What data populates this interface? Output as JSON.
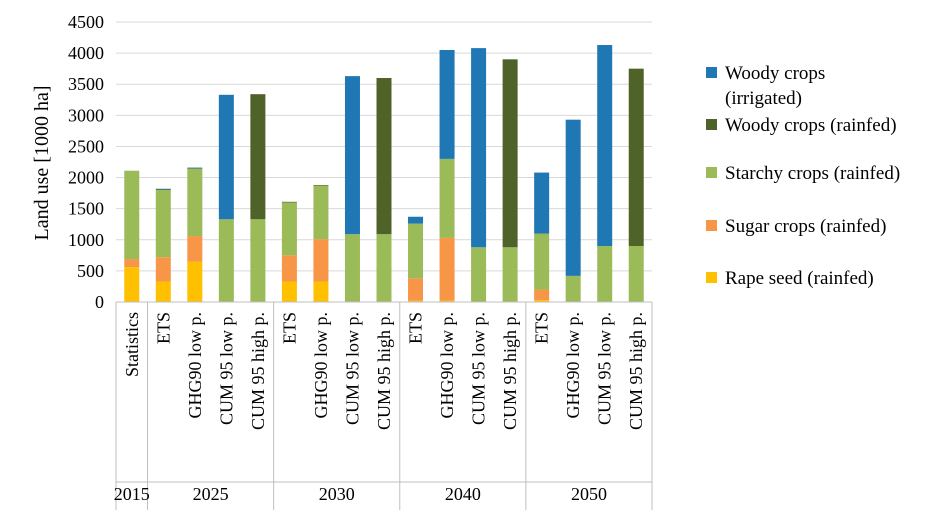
{
  "chart_data": {
    "type": "bar",
    "stacked": true,
    "ylabel": "Land use [1000 ha]",
    "ylim": [
      0,
      4500
    ],
    "yticks": [
      0,
      500,
      1000,
      1500,
      2000,
      2500,
      3000,
      3500,
      4000,
      4500
    ],
    "grid": true,
    "legend_position": "right",
    "groups": [
      {
        "year": "2015",
        "categories": [
          "Statistics"
        ]
      },
      {
        "year": "2025",
        "categories": [
          "ETS",
          "GHG90 low p.",
          "CUM 95 low p.",
          "CUM 95 high p."
        ]
      },
      {
        "year": "2030",
        "categories": [
          "ETS",
          "GHG90 low p.",
          "CUM 95 low p.",
          "CUM 95 high p."
        ]
      },
      {
        "year": "2040",
        "categories": [
          "ETS",
          "GHG90 low p.",
          "CUM 95 low p.",
          "CUM 95 high p."
        ]
      },
      {
        "year": "2050",
        "categories": [
          "ETS",
          "GHG90 low p.",
          "CUM 95 low p.",
          "CUM 95 high p."
        ]
      }
    ],
    "series": [
      {
        "name": "Rape seed (rainfed)",
        "color": "#FFC000",
        "values": [
          560,
          330,
          650,
          0,
          0,
          330,
          330,
          0,
          0,
          20,
          20,
          0,
          0,
          30,
          0,
          0,
          0
        ]
      },
      {
        "name": "Sugar crops (rainfed)",
        "color": "#F79646",
        "values": [
          130,
          390,
          410,
          0,
          0,
          420,
          680,
          0,
          0,
          360,
          1010,
          0,
          0,
          170,
          0,
          0,
          0
        ]
      },
      {
        "name": "Starchy crops (rainfed)",
        "color": "#9BBB59",
        "values": [
          1420,
          1080,
          1080,
          1330,
          1330,
          850,
          860,
          1090,
          1090,
          880,
          1270,
          880,
          880,
          900,
          420,
          900,
          900
        ]
      },
      {
        "name": "Woody crops (rainfed)",
        "color": "#4F6228",
        "values": [
          0,
          10,
          10,
          0,
          2010,
          10,
          10,
          0,
          2510,
          0,
          0,
          0,
          3020,
          0,
          0,
          0,
          2850
        ]
      },
      {
        "name": "Woody crops (irrigated)",
        "color": "#1F77B4",
        "values": [
          0,
          10,
          10,
          2000,
          0,
          0,
          0,
          2540,
          0,
          110,
          1750,
          3200,
          0,
          980,
          2510,
          3230,
          0
        ]
      }
    ],
    "legend_order": [
      "Woody crops (irrigated)",
      "Woody crops (rainfed)",
      "Starchy crops (rainfed)",
      "Sugar crops (rainfed)",
      "Rape seed (rainfed)"
    ]
  }
}
